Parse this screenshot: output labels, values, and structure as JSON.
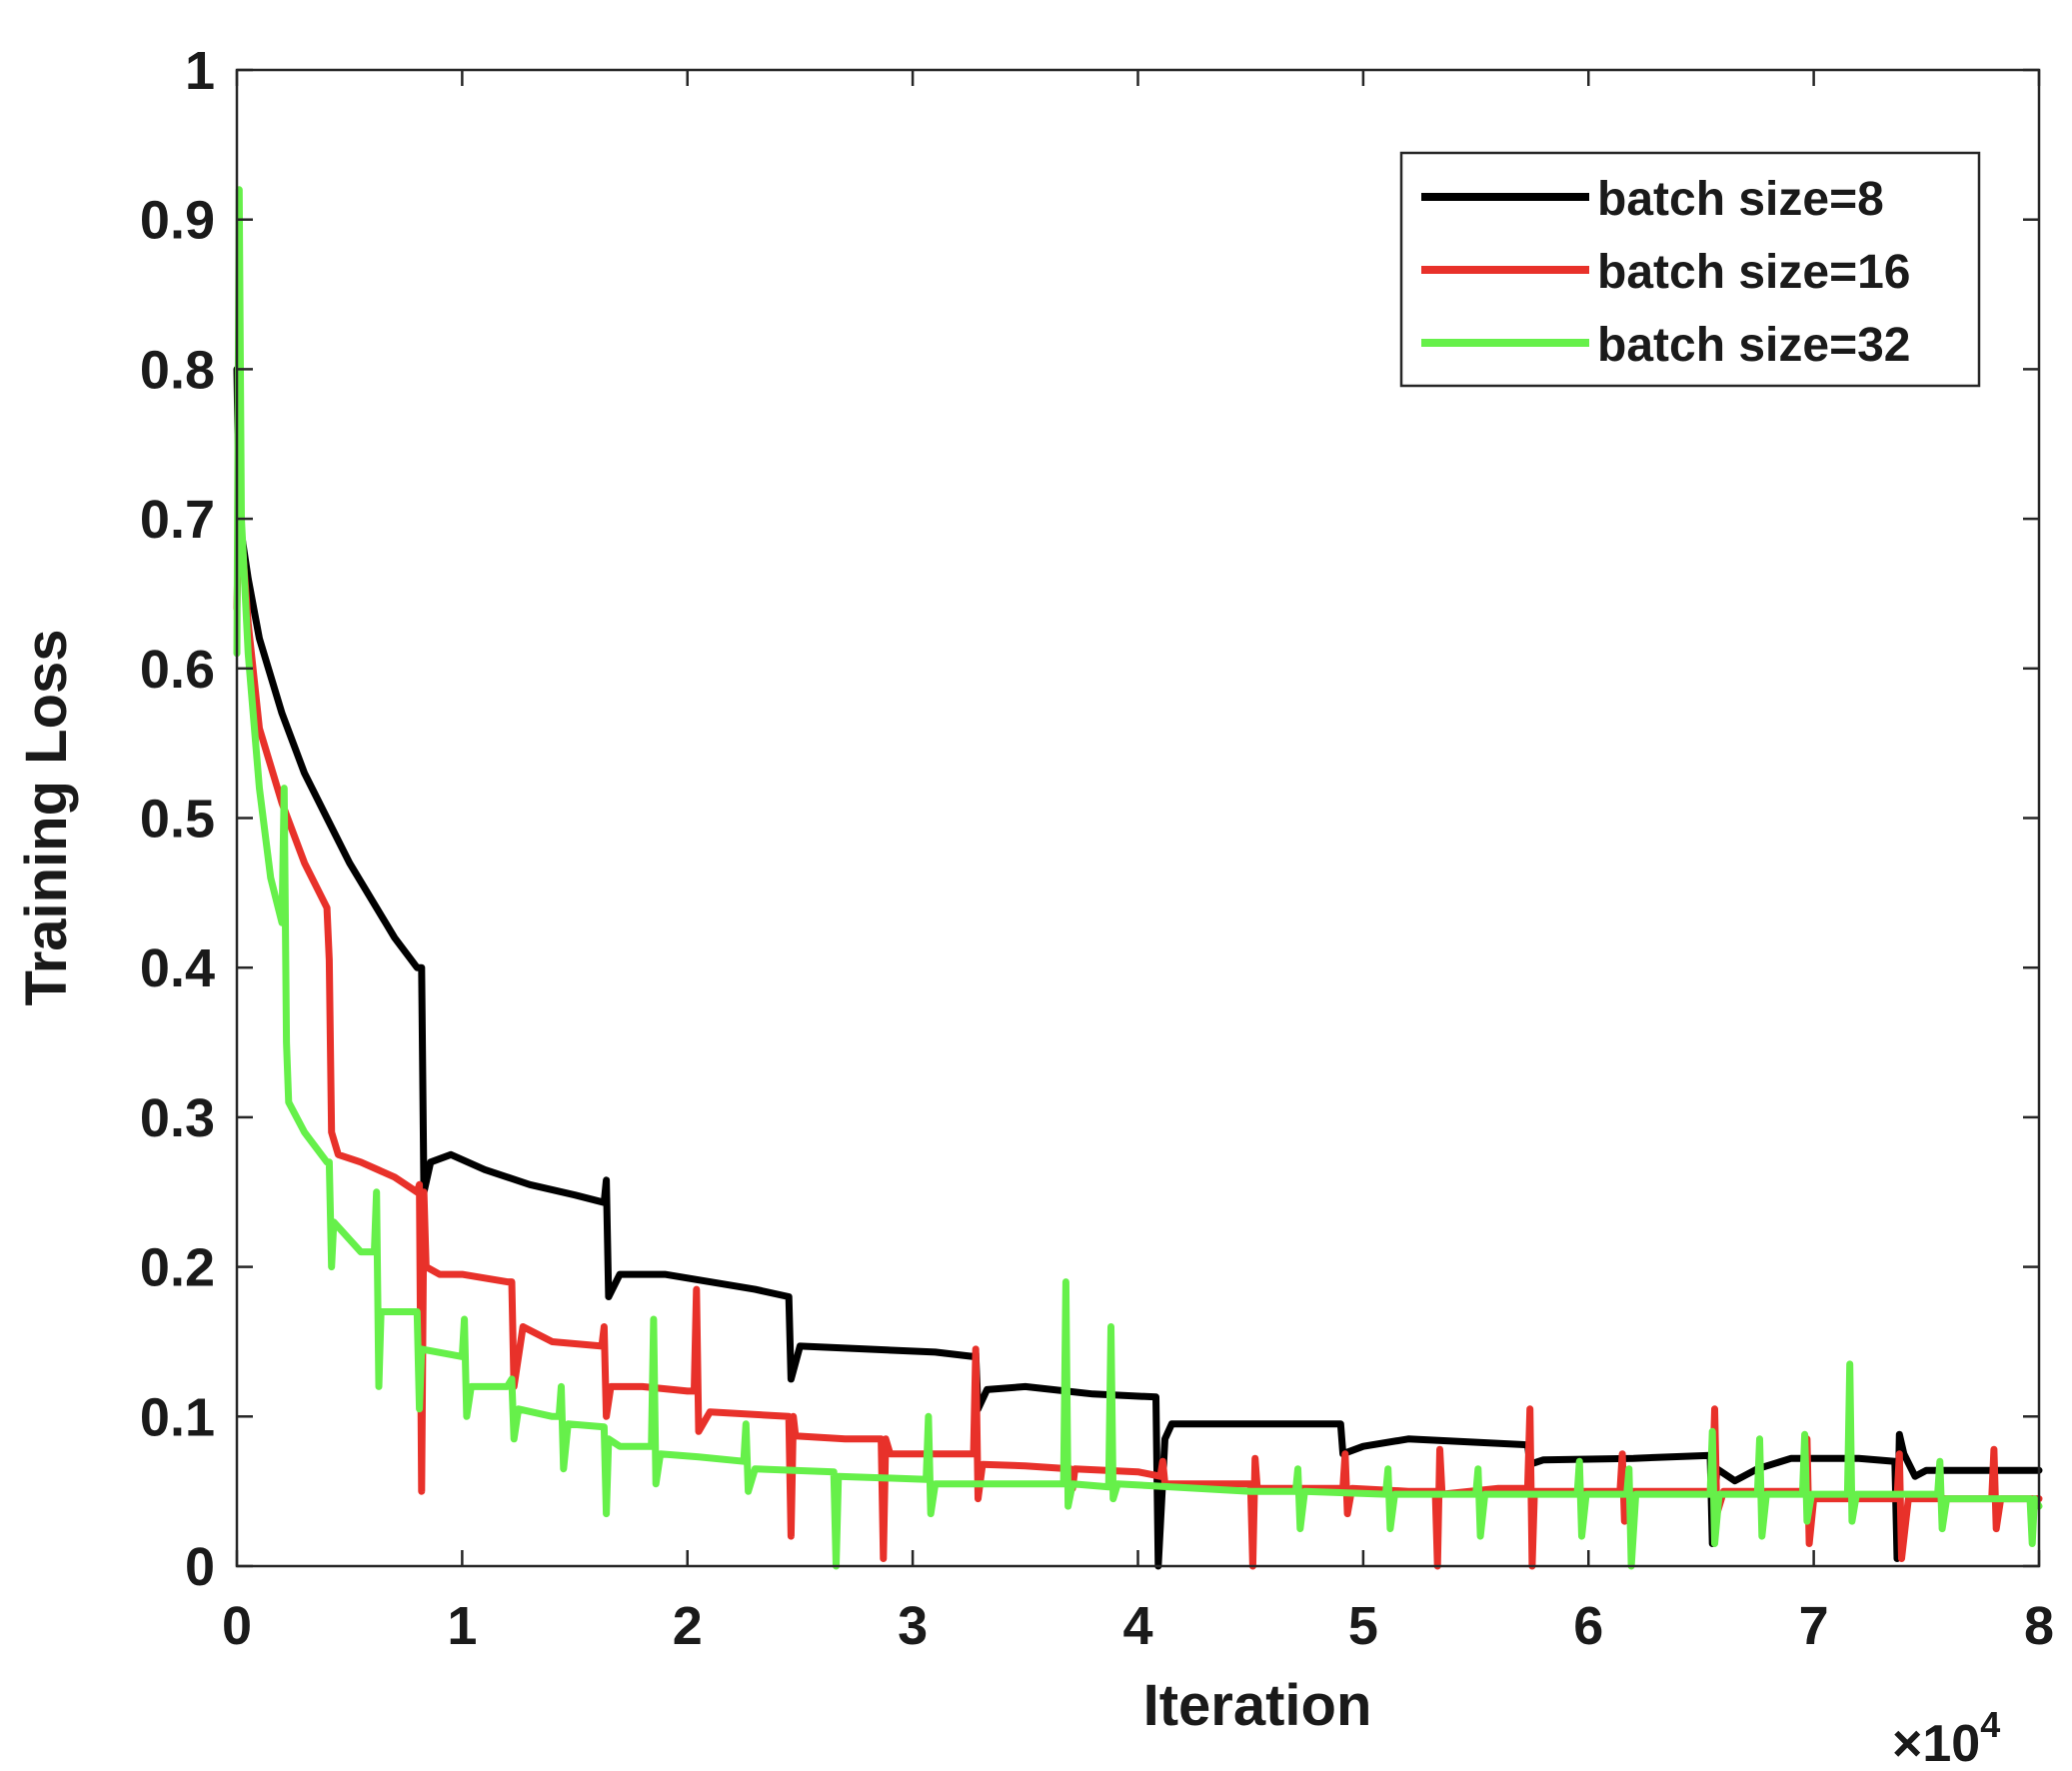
{
  "chart_data": {
    "type": "line",
    "title": "",
    "xlabel": "Iteration",
    "ylabel": "Training Loss",
    "x_multiplier_label": "×10",
    "x_multiplier_exponent": "4",
    "xlim": [
      0,
      8
    ],
    "ylim": [
      0,
      1
    ],
    "x_ticks": [
      "0",
      "1",
      "2",
      "3",
      "4",
      "5",
      "6",
      "7",
      "8"
    ],
    "y_ticks": [
      "0",
      "0.1",
      "0.2",
      "0.3",
      "0.4",
      "0.5",
      "0.6",
      "0.7",
      "0.8",
      "0.9",
      "1"
    ],
    "grid": false,
    "legend_position": "top-right",
    "series": [
      {
        "name": "batch size=8",
        "color": "#000000",
        "points": [
          [
            0,
            0.8
          ],
          [
            0.01,
            0.7
          ],
          [
            0.05,
            0.66
          ],
          [
            0.1,
            0.62
          ],
          [
            0.2,
            0.57
          ],
          [
            0.3,
            0.53
          ],
          [
            0.4,
            0.5
          ],
          [
            0.5,
            0.47
          ],
          [
            0.6,
            0.445
          ],
          [
            0.7,
            0.42
          ],
          [
            0.8,
            0.4
          ],
          [
            0.82,
            0.4
          ],
          [
            0.83,
            0.25
          ],
          [
            0.86,
            0.27
          ],
          [
            0.95,
            0.275
          ],
          [
            1.1,
            0.265
          ],
          [
            1.3,
            0.255
          ],
          [
            1.5,
            0.248
          ],
          [
            1.63,
            0.243
          ],
          [
            1.64,
            0.258
          ],
          [
            1.65,
            0.18
          ],
          [
            1.7,
            0.195
          ],
          [
            1.9,
            0.195
          ],
          [
            2.1,
            0.19
          ],
          [
            2.3,
            0.185
          ],
          [
            2.45,
            0.18
          ],
          [
            2.46,
            0.125
          ],
          [
            2.5,
            0.147
          ],
          [
            2.8,
            0.145
          ],
          [
            3.1,
            0.143
          ],
          [
            3.27,
            0.14
          ],
          [
            3.28,
            0.142
          ],
          [
            3.29,
            0.105
          ],
          [
            3.33,
            0.118
          ],
          [
            3.5,
            0.12
          ],
          [
            3.8,
            0.115
          ],
          [
            4.08,
            0.113
          ],
          [
            4.09,
            0.0
          ],
          [
            4.12,
            0.085
          ],
          [
            4.15,
            0.095
          ],
          [
            4.5,
            0.095
          ],
          [
            4.9,
            0.095
          ],
          [
            4.91,
            0.075
          ],
          [
            5.0,
            0.08
          ],
          [
            5.2,
            0.085
          ],
          [
            5.73,
            0.081
          ],
          [
            5.74,
            0.068
          ],
          [
            5.8,
            0.071
          ],
          [
            6.2,
            0.072
          ],
          [
            6.54,
            0.074
          ],
          [
            6.55,
            0.015
          ],
          [
            6.57,
            0.065
          ],
          [
            6.6,
            0.062
          ],
          [
            6.65,
            0.057
          ],
          [
            6.75,
            0.065
          ],
          [
            6.9,
            0.072
          ],
          [
            7.2,
            0.072
          ],
          [
            7.36,
            0.07
          ],
          [
            7.37,
            0.005
          ],
          [
            7.38,
            0.088
          ],
          [
            7.4,
            0.075
          ],
          [
            7.45,
            0.06
          ],
          [
            7.5,
            0.064
          ],
          [
            8.0,
            0.064
          ]
        ]
      },
      {
        "name": "batch size=16",
        "color": "#e8312a",
        "points": [
          [
            0,
            0.64
          ],
          [
            0.01,
            0.71
          ],
          [
            0.05,
            0.63
          ],
          [
            0.1,
            0.56
          ],
          [
            0.2,
            0.51
          ],
          [
            0.3,
            0.47
          ],
          [
            0.4,
            0.44
          ],
          [
            0.41,
            0.405
          ],
          [
            0.42,
            0.29
          ],
          [
            0.45,
            0.275
          ],
          [
            0.55,
            0.27
          ],
          [
            0.7,
            0.26
          ],
          [
            0.8,
            0.25
          ],
          [
            0.81,
            0.255
          ],
          [
            0.82,
            0.05
          ],
          [
            0.83,
            0.25
          ],
          [
            0.84,
            0.2
          ],
          [
            0.9,
            0.195
          ],
          [
            1.0,
            0.195
          ],
          [
            1.2,
            0.19
          ],
          [
            1.22,
            0.19
          ],
          [
            1.23,
            0.12
          ],
          [
            1.27,
            0.16
          ],
          [
            1.4,
            0.15
          ],
          [
            1.62,
            0.147
          ],
          [
            1.63,
            0.16
          ],
          [
            1.64,
            0.1
          ],
          [
            1.66,
            0.12
          ],
          [
            1.8,
            0.12
          ],
          [
            2.0,
            0.117
          ],
          [
            2.03,
            0.117
          ],
          [
            2.04,
            0.185
          ],
          [
            2.05,
            0.09
          ],
          [
            2.1,
            0.103
          ],
          [
            2.45,
            0.1
          ],
          [
            2.46,
            0.02
          ],
          [
            2.47,
            0.1
          ],
          [
            2.48,
            0.087
          ],
          [
            2.7,
            0.085
          ],
          [
            2.86,
            0.085
          ],
          [
            2.87,
            0.005
          ],
          [
            2.88,
            0.085
          ],
          [
            2.9,
            0.075
          ],
          [
            3.1,
            0.075
          ],
          [
            3.27,
            0.075
          ],
          [
            3.28,
            0.145
          ],
          [
            3.29,
            0.045
          ],
          [
            3.31,
            0.068
          ],
          [
            3.5,
            0.067
          ],
          [
            3.7,
            0.065
          ],
          [
            3.71,
            0.052
          ],
          [
            3.72,
            0.065
          ],
          [
            4.0,
            0.063
          ],
          [
            4.1,
            0.06
          ],
          [
            4.11,
            0.07
          ],
          [
            4.12,
            0.055
          ],
          [
            4.4,
            0.055
          ],
          [
            4.5,
            0.055
          ],
          [
            4.51,
            0.0
          ],
          [
            4.52,
            0.072
          ],
          [
            4.53,
            0.052
          ],
          [
            4.7,
            0.052
          ],
          [
            4.91,
            0.052
          ],
          [
            4.92,
            0.075
          ],
          [
            4.93,
            0.035
          ],
          [
            4.95,
            0.052
          ],
          [
            5.2,
            0.05
          ],
          [
            5.32,
            0.05
          ],
          [
            5.33,
            0.0
          ],
          [
            5.34,
            0.078
          ],
          [
            5.35,
            0.048
          ],
          [
            5.6,
            0.052
          ],
          [
            5.73,
            0.052
          ],
          [
            5.74,
            0.105
          ],
          [
            5.75,
            0.0
          ],
          [
            5.76,
            0.05
          ],
          [
            6.0,
            0.05
          ],
          [
            6.14,
            0.05
          ],
          [
            6.15,
            0.075
          ],
          [
            6.16,
            0.03
          ],
          [
            6.18,
            0.05
          ],
          [
            6.4,
            0.05
          ],
          [
            6.55,
            0.05
          ],
          [
            6.56,
            0.105
          ],
          [
            6.57,
            0.035
          ],
          [
            6.6,
            0.05
          ],
          [
            6.9,
            0.05
          ],
          [
            6.96,
            0.05
          ],
          [
            6.97,
            0.085
          ],
          [
            6.98,
            0.015
          ],
          [
            7.0,
            0.045
          ],
          [
            7.2,
            0.045
          ],
          [
            7.37,
            0.045
          ],
          [
            7.38,
            0.075
          ],
          [
            7.39,
            0.005
          ],
          [
            7.42,
            0.045
          ],
          [
            7.7,
            0.045
          ],
          [
            7.79,
            0.045
          ],
          [
            7.8,
            0.078
          ],
          [
            7.81,
            0.025
          ],
          [
            7.83,
            0.045
          ],
          [
            8.0,
            0.045
          ]
        ]
      },
      {
        "name": "batch size=32",
        "color": "#66f04a",
        "points": [
          [
            0,
            0.61
          ],
          [
            0.01,
            0.92
          ],
          [
            0.02,
            0.7
          ],
          [
            0.05,
            0.61
          ],
          [
            0.1,
            0.52
          ],
          [
            0.15,
            0.46
          ],
          [
            0.2,
            0.43
          ],
          [
            0.21,
            0.52
          ],
          [
            0.22,
            0.35
          ],
          [
            0.23,
            0.31
          ],
          [
            0.3,
            0.29
          ],
          [
            0.4,
            0.27
          ],
          [
            0.41,
            0.27
          ],
          [
            0.42,
            0.2
          ],
          [
            0.43,
            0.23
          ],
          [
            0.55,
            0.21
          ],
          [
            0.61,
            0.21
          ],
          [
            0.62,
            0.25
          ],
          [
            0.63,
            0.12
          ],
          [
            0.64,
            0.17
          ],
          [
            0.8,
            0.17
          ],
          [
            0.81,
            0.105
          ],
          [
            0.82,
            0.145
          ],
          [
            1.0,
            0.14
          ],
          [
            1.01,
            0.165
          ],
          [
            1.02,
            0.1
          ],
          [
            1.04,
            0.12
          ],
          [
            1.2,
            0.12
          ],
          [
            1.22,
            0.125
          ],
          [
            1.23,
            0.085
          ],
          [
            1.25,
            0.105
          ],
          [
            1.4,
            0.1
          ],
          [
            1.43,
            0.1
          ],
          [
            1.44,
            0.12
          ],
          [
            1.45,
            0.065
          ],
          [
            1.47,
            0.095
          ],
          [
            1.63,
            0.093
          ],
          [
            1.64,
            0.035
          ],
          [
            1.65,
            0.085
          ],
          [
            1.7,
            0.08
          ],
          [
            1.84,
            0.08
          ],
          [
            1.85,
            0.165
          ],
          [
            1.86,
            0.055
          ],
          [
            1.88,
            0.075
          ],
          [
            2.05,
            0.073
          ],
          [
            2.25,
            0.07
          ],
          [
            2.26,
            0.095
          ],
          [
            2.27,
            0.05
          ],
          [
            2.3,
            0.065
          ],
          [
            2.65,
            0.063
          ],
          [
            2.66,
            0.0
          ],
          [
            2.67,
            0.06
          ],
          [
            3.06,
            0.058
          ],
          [
            3.07,
            0.1
          ],
          [
            3.08,
            0.035
          ],
          [
            3.1,
            0.055
          ],
          [
            3.67,
            0.055
          ],
          [
            3.68,
            0.19
          ],
          [
            3.69,
            0.04
          ],
          [
            3.71,
            0.055
          ],
          [
            3.87,
            0.053
          ],
          [
            3.88,
            0.16
          ],
          [
            3.89,
            0.045
          ],
          [
            3.91,
            0.055
          ],
          [
            4.5,
            0.05
          ],
          [
            4.7,
            0.05
          ],
          [
            4.71,
            0.065
          ],
          [
            4.72,
            0.025
          ],
          [
            4.74,
            0.05
          ],
          [
            5.1,
            0.048
          ],
          [
            5.11,
            0.065
          ],
          [
            5.12,
            0.025
          ],
          [
            5.14,
            0.048
          ],
          [
            5.5,
            0.048
          ],
          [
            5.51,
            0.065
          ],
          [
            5.52,
            0.02
          ],
          [
            5.54,
            0.048
          ],
          [
            5.95,
            0.048
          ],
          [
            5.96,
            0.07
          ],
          [
            5.97,
            0.02
          ],
          [
            5.99,
            0.048
          ],
          [
            6.17,
            0.048
          ],
          [
            6.18,
            0.065
          ],
          [
            6.19,
            0.0
          ],
          [
            6.21,
            0.048
          ],
          [
            6.54,
            0.048
          ],
          [
            6.55,
            0.09
          ],
          [
            6.56,
            0.015
          ],
          [
            6.58,
            0.048
          ],
          [
            6.75,
            0.048
          ],
          [
            6.76,
            0.085
          ],
          [
            6.77,
            0.02
          ],
          [
            6.79,
            0.048
          ],
          [
            6.95,
            0.048
          ],
          [
            6.96,
            0.088
          ],
          [
            6.97,
            0.03
          ],
          [
            6.99,
            0.048
          ],
          [
            7.15,
            0.048
          ],
          [
            7.16,
            0.135
          ],
          [
            7.17,
            0.03
          ],
          [
            7.19,
            0.048
          ],
          [
            7.55,
            0.048
          ],
          [
            7.56,
            0.07
          ],
          [
            7.57,
            0.025
          ],
          [
            7.59,
            0.045
          ],
          [
            7.95,
            0.045
          ],
          [
            7.96,
            0.045
          ],
          [
            7.97,
            0.015
          ],
          [
            7.98,
            0.045
          ],
          [
            8.0,
            0.04
          ]
        ]
      }
    ]
  }
}
